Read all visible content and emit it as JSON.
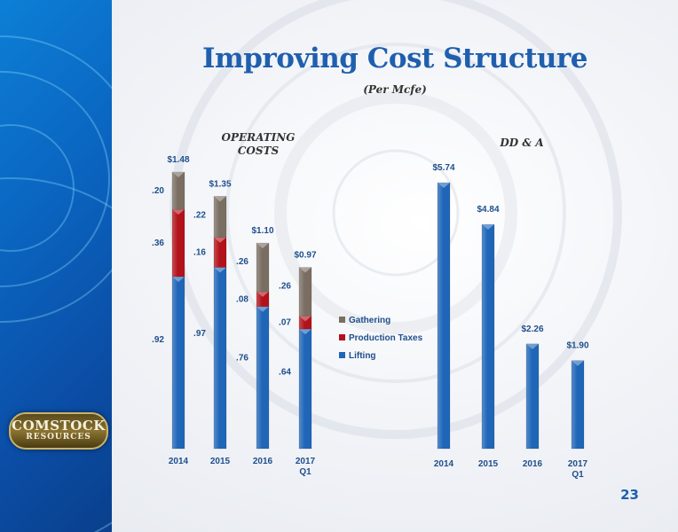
{
  "slide": {
    "title": "Improving Cost Structure",
    "subtitle": "(Per Mcfe)",
    "page_number": "23",
    "logo": {
      "line1": "COMSTOCK",
      "line2": "RESOURCES"
    }
  },
  "colors": {
    "lifting": "#1f66b8",
    "production_taxes": "#b3121a",
    "gathering": "#7a6e62",
    "title": "#1f5fae",
    "sidebar": "#0b5fb8"
  },
  "chart_data": [
    {
      "type": "bar",
      "stacked": true,
      "title": "OPERATING COSTS",
      "title_lines": [
        "OPERATING",
        "COSTS"
      ],
      "categories": [
        [
          "2014"
        ],
        [
          "2015"
        ],
        [
          "2016"
        ],
        [
          "2017",
          "Q1"
        ]
      ],
      "series": [
        {
          "name": "Lifting",
          "values": [
            0.92,
            0.97,
            0.76,
            0.64
          ],
          "labels": [
            ".92",
            ".97",
            ".76",
            ".64"
          ],
          "color": "#1f66b8"
        },
        {
          "name": "Production Taxes",
          "values": [
            0.36,
            0.16,
            0.08,
            0.07
          ],
          "labels": [
            ".36",
            ".16",
            ".08",
            ".07"
          ],
          "color": "#b3121a"
        },
        {
          "name": "Gathering",
          "values": [
            0.2,
            0.22,
            0.26,
            0.26
          ],
          "labels": [
            ".20",
            ".22",
            ".26",
            ".26"
          ],
          "color": "#7a6e62"
        }
      ],
      "totals": [
        "$1.48",
        "$1.35",
        "$1.10",
        "$0.97"
      ],
      "legend": {
        "items": [
          "Gathering",
          "Production Taxes",
          "Lifting"
        ],
        "placement": "right"
      },
      "grid": false
    },
    {
      "type": "bar",
      "title": "DD & A",
      "categories": [
        [
          "2014"
        ],
        [
          "2015"
        ],
        [
          "2016"
        ],
        [
          "2017",
          "Q1"
        ]
      ],
      "values": [
        5.74,
        4.84,
        2.26,
        1.9
      ],
      "labels": [
        "$5.74",
        "$4.84",
        "$2.26",
        "$1.90"
      ],
      "color": "#1f66b8",
      "grid": false
    }
  ]
}
